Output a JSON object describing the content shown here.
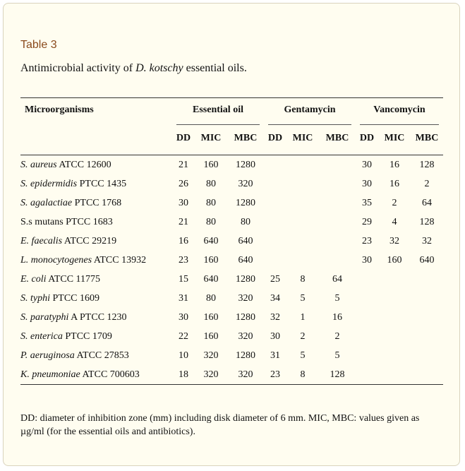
{
  "table_label": "Table 3",
  "caption": {
    "prefix": "Antimicrobial activity of ",
    "species": "D. kotschy",
    "suffix": " essential oils."
  },
  "header": {
    "microorganisms": "Microorganisms",
    "groups": [
      "Essential oil",
      "Gentamycin",
      "Vancomycin"
    ],
    "sub": [
      "DD",
      "MIC",
      "MBC"
    ]
  },
  "rows": [
    {
      "name_italic": "S. aureus",
      "name_rest": " ATCC 12600",
      "eo": [
        "21",
        "160",
        "1280"
      ],
      "gen": [
        "",
        "",
        ""
      ],
      "van": [
        "30",
        "16",
        "128"
      ]
    },
    {
      "name_italic": "S. epidermidis",
      "name_rest": " PTCC 1435",
      "eo": [
        "26",
        "80",
        "320"
      ],
      "gen": [
        "",
        "",
        ""
      ],
      "van": [
        "30",
        "16",
        "2"
      ]
    },
    {
      "name_italic": "S. agalactiae",
      "name_rest": " PTCC 1768",
      "eo": [
        "30",
        "80",
        "1280"
      ],
      "gen": [
        "",
        "",
        ""
      ],
      "van": [
        "35",
        "2",
        "64"
      ]
    },
    {
      "name_italic": "",
      "name_rest": "S.s mutans PTCC 1683",
      "eo": [
        "21",
        "80",
        "80"
      ],
      "gen": [
        "",
        "",
        ""
      ],
      "van": [
        "29",
        "4",
        "128"
      ]
    },
    {
      "name_italic": "E. faecalis",
      "name_rest": " ATCC 29219",
      "eo": [
        "16",
        "640",
        "640"
      ],
      "gen": [
        "",
        "",
        ""
      ],
      "van": [
        "23",
        "32",
        "32"
      ]
    },
    {
      "name_italic": "L. monocytogenes",
      "name_rest": " ATCC 13932",
      "eo": [
        "23",
        "160",
        "640"
      ],
      "gen": [
        "",
        "",
        ""
      ],
      "van": [
        "30",
        "160",
        "640"
      ]
    },
    {
      "name_italic": "E. coli",
      "name_rest": " ATCC 11775",
      "eo": [
        "15",
        "640",
        "1280"
      ],
      "gen": [
        "25",
        "8",
        "64"
      ],
      "van": [
        "",
        "",
        ""
      ]
    },
    {
      "name_italic": "S. typhi",
      "name_rest": " PTCC 1609",
      "eo": [
        "31",
        "80",
        "320"
      ],
      "gen": [
        "34",
        "5",
        "5"
      ],
      "van": [
        "",
        "",
        ""
      ]
    },
    {
      "name_italic": "S. paratyphi",
      "name_rest": " A PTCC 1230",
      "eo": [
        "30",
        "160",
        "1280"
      ],
      "gen": [
        "32",
        "1",
        "16"
      ],
      "van": [
        "",
        "",
        ""
      ]
    },
    {
      "name_italic": "S. enterica",
      "name_rest": " PTCC 1709",
      "eo": [
        "22",
        "160",
        "320"
      ],
      "gen": [
        "30",
        "2",
        "2"
      ],
      "van": [
        "",
        "",
        ""
      ]
    },
    {
      "name_italic": "P. aeruginosa",
      "name_rest": " ATCC 27853",
      "eo": [
        "10",
        "320",
        "1280"
      ],
      "gen": [
        "31",
        "5",
        "5"
      ],
      "van": [
        "",
        "",
        ""
      ]
    },
    {
      "name_italic": "K. pneumoniae",
      "name_rest": " ATCC 700603",
      "eo": [
        "18",
        "320",
        "320"
      ],
      "gen": [
        "23",
        "8",
        "128"
      ],
      "van": [
        "",
        "",
        ""
      ]
    }
  ],
  "footnote": "DD: diameter of inhibition zone (mm) including disk diameter of 6 mm. MIC, MBC: values given as µg/ml (for the essential oils and antibiotics).",
  "colors": {
    "panel_bg": "#fffdf0",
    "label": "#8a4a1c"
  }
}
